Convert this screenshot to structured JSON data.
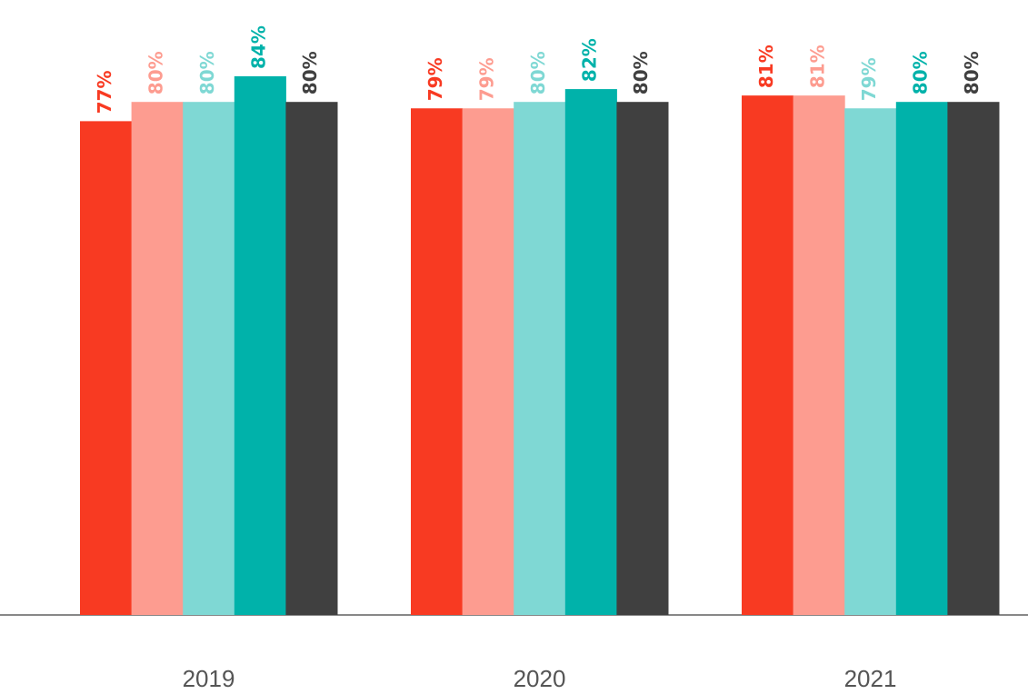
{
  "chart_data": {
    "type": "bar",
    "categories": [
      "2019",
      "2020",
      "2021"
    ],
    "series": [
      {
        "color": "#f83a22",
        "values": [
          77,
          79,
          81
        ],
        "value_labels": [
          "77%",
          "79%",
          "81%"
        ]
      },
      {
        "color": "#fd9c90",
        "values": [
          80,
          79,
          81
        ],
        "value_labels": [
          "80%",
          "79%",
          "81%"
        ]
      },
      {
        "color": "#7fd8d4",
        "values": [
          80,
          80,
          79
        ],
        "value_labels": [
          "80%",
          "80%",
          "79%"
        ]
      },
      {
        "color": "#00b2aa",
        "values": [
          84,
          82,
          80
        ],
        "value_labels": [
          "84%",
          "82%",
          "80%"
        ]
      },
      {
        "color": "#404040",
        "values": [
          80,
          80,
          80
        ],
        "value_labels": [
          "80%",
          "80%",
          "80%"
        ]
      }
    ],
    "ylim": [
      0,
      100
    ]
  }
}
